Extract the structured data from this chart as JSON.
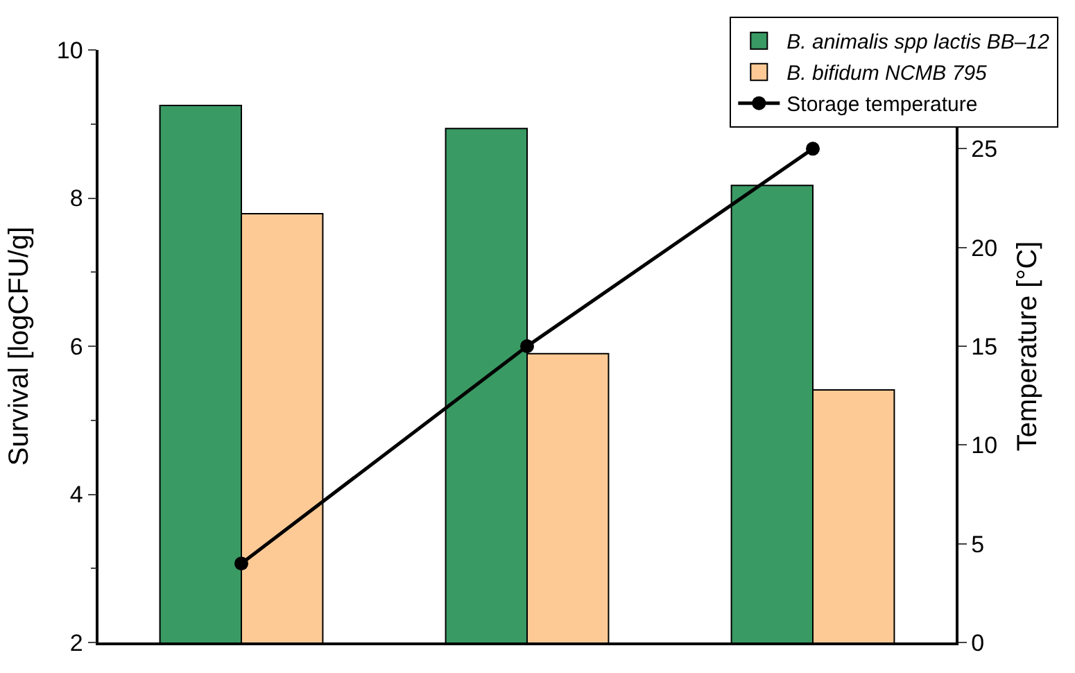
{
  "chart_data": {
    "type": "bar",
    "categories": [
      null,
      null,
      null
    ],
    "ylabel": "Survival [logCFU/g]",
    "y2label": "Temperature [°C]",
    "ylim": [
      2,
      10
    ],
    "yticks": [
      2,
      4,
      6,
      8,
      10
    ],
    "y2lim": [
      0,
      30
    ],
    "y2ticks": [
      0,
      5,
      10,
      15,
      20,
      25
    ],
    "series": [
      {
        "name": "B. animalis spp lactis BB–12",
        "color": "#3a9a64",
        "values": [
          9.25,
          8.94,
          8.17
        ]
      },
      {
        "name": "B. bifidum NCMB 795",
        "color": "#fdca96",
        "values": [
          7.79,
          5.9,
          5.41
        ]
      },
      {
        "name": "Storage temperature",
        "type": "line",
        "axis": "y2",
        "color": "#000000",
        "values": [
          4,
          15,
          25
        ],
        "marker": "circle",
        "line_style": "solid"
      }
    ],
    "legend": "top right",
    "tick_labels": "y"
  }
}
